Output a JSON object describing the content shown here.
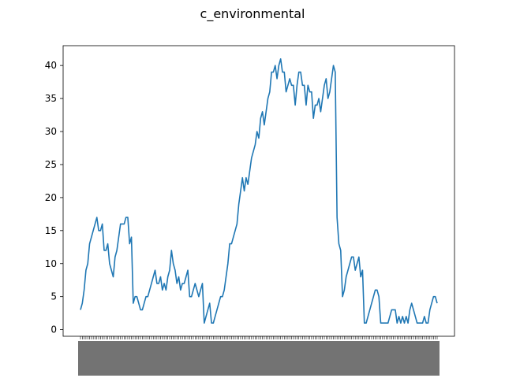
{
  "chart_data": {
    "type": "line",
    "title": "c_environmental",
    "xlabel": "",
    "ylabel": "",
    "ylim": [
      -1,
      43
    ],
    "yticks": [
      0,
      5,
      10,
      15,
      20,
      25,
      30,
      35,
      40
    ],
    "grid": false,
    "legend": "none",
    "series_color": "#1f77b4",
    "series": [
      {
        "values": [
          3,
          4,
          6,
          9,
          10,
          13,
          14,
          15,
          16,
          17,
          15,
          15,
          16,
          12,
          12,
          13,
          10,
          9,
          8,
          11,
          12,
          14,
          16,
          16,
          16,
          17,
          17,
          13,
          14,
          4,
          5,
          5,
          4,
          3,
          3,
          4,
          5,
          5,
          6,
          7,
          8,
          9,
          7,
          7,
          8,
          6,
          7,
          6,
          8,
          9,
          12,
          10,
          9,
          7,
          8,
          6,
          7,
          7,
          8,
          9,
          5,
          5,
          6,
          7,
          6,
          5,
          6,
          7,
          1,
          2,
          3,
          4,
          1,
          1,
          2,
          3,
          4,
          5,
          5,
          6,
          8,
          10,
          13,
          13,
          14,
          15,
          16,
          19,
          21,
          23,
          21,
          23,
          22,
          24,
          26,
          27,
          28,
          30,
          29,
          32,
          33,
          31,
          33,
          35,
          36,
          39,
          39,
          40,
          38,
          40,
          41,
          39,
          39,
          36,
          37,
          38,
          37,
          37,
          34,
          37,
          39,
          39,
          37,
          37,
          34,
          37,
          36,
          36,
          32,
          34,
          34,
          35,
          33,
          35,
          37,
          38,
          35,
          36,
          38,
          40,
          39,
          17,
          13,
          12,
          5,
          6,
          8,
          9,
          10,
          11,
          11,
          9,
          10,
          11,
          8,
          9,
          1,
          1,
          2,
          3,
          4,
          5,
          6,
          6,
          5,
          1,
          1,
          1,
          1,
          1,
          2,
          3,
          3,
          3,
          1,
          2,
          1,
          2,
          1,
          2,
          1,
          3,
          4,
          3,
          2,
          1,
          1,
          1,
          1,
          2,
          1,
          1,
          3,
          4,
          5,
          5,
          4
        ]
      }
    ]
  }
}
